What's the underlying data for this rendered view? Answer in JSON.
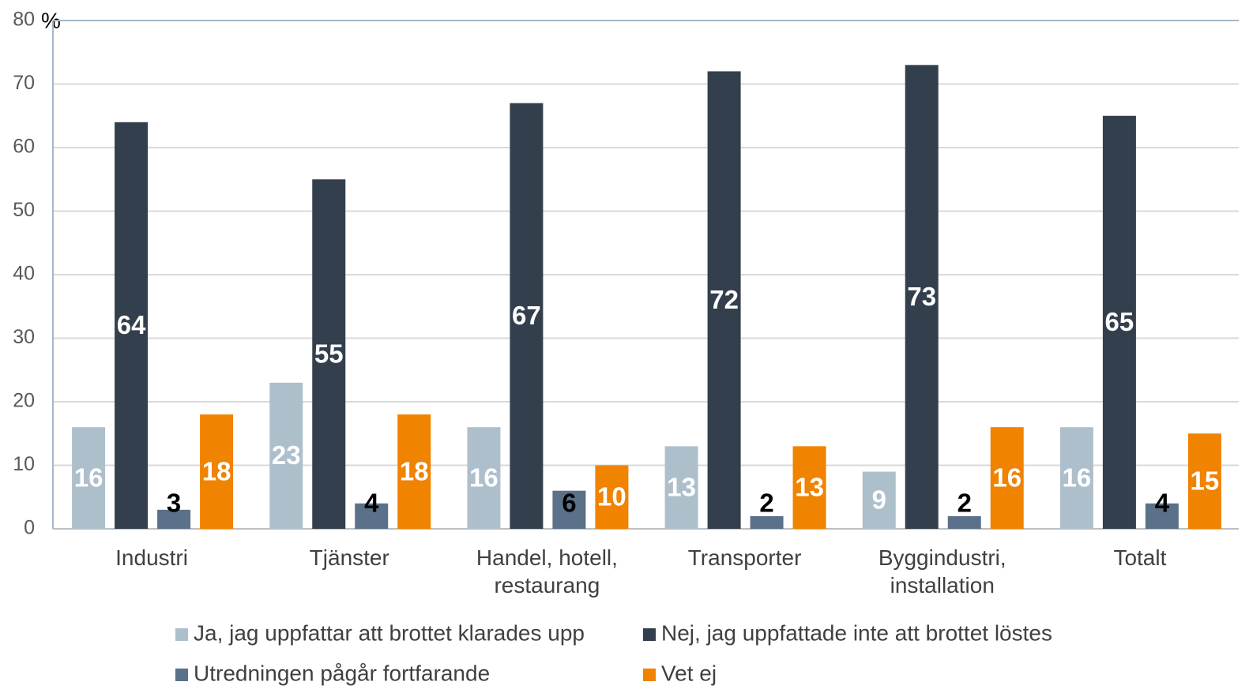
{
  "chart_data": {
    "type": "bar",
    "y_label": "%",
    "categories": [
      "Industri",
      "Tjänster",
      "Handel, hotell, restaurang",
      "Transporter",
      "Byggindustri, installation",
      "Totalt"
    ],
    "series": [
      {
        "name": "Ja, jag uppfattar att brottet klarades upp",
        "color": "#aebfcc",
        "label_color": "#ffffff",
        "values": [
          16,
          23,
          16,
          13,
          9,
          16
        ]
      },
      {
        "name": "Nej, jag uppfattade inte att brottet löstes",
        "color": "#333f4c",
        "label_color": "#ffffff",
        "values": [
          64,
          55,
          67,
          72,
          73,
          65
        ]
      },
      {
        "name": "Utredningen pågår fortfarande",
        "color": "#5a7189",
        "label_color": "#000000",
        "values": [
          3,
          4,
          6,
          2,
          2,
          4
        ]
      },
      {
        "name": "Vet ej",
        "color": "#f08300",
        "label_color": "#ffffff",
        "values": [
          18,
          18,
          10,
          13,
          16,
          15
        ]
      }
    ],
    "ylim": [
      0,
      80
    ],
    "yticks": [
      0,
      10,
      20,
      30,
      40,
      50,
      60,
      70,
      80
    ],
    "grid": true
  }
}
